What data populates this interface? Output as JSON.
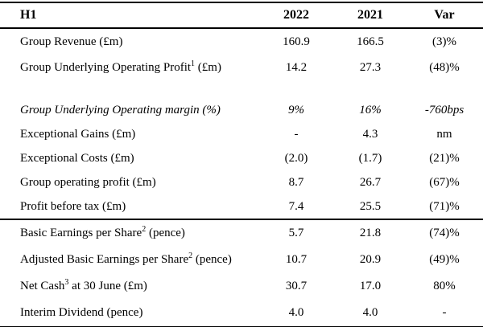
{
  "table": {
    "header": {
      "col0": "H1",
      "col1": "2022",
      "col2": "2021",
      "col3": "Var"
    },
    "rows": [
      {
        "label_pre": "Group Revenue (£m)",
        "label_sup": "",
        "label_post": "",
        "v2022": "160.9",
        "v2021": "166.5",
        "var": "(3)%"
      },
      {
        "label_pre": "Group Underlying Operating Profit",
        "label_sup": "1",
        "label_post": " (£m)",
        "v2022": "14.2",
        "v2021": "27.3",
        "var": "(48)%"
      },
      {
        "label_pre": "Group Underlying Operating margin (%)",
        "label_sup": "",
        "label_post": "",
        "v2022": "9%",
        "v2021": "16%",
        "var": "-760bps"
      },
      {
        "label_pre": "Exceptional Gains (£m)",
        "label_sup": "",
        "label_post": "",
        "v2022": "-",
        "v2021": "4.3",
        "var": "nm"
      },
      {
        "label_pre": "Exceptional Costs (£m)",
        "label_sup": "",
        "label_post": "",
        "v2022": "(2.0)",
        "v2021": "(1.7)",
        "var": "(21)%"
      },
      {
        "label_pre": "Group operating profit (£m)",
        "label_sup": "",
        "label_post": "",
        "v2022": "8.7",
        "v2021": "26.7",
        "var": "(67)%"
      },
      {
        "label_pre": "Profit before tax (£m)",
        "label_sup": "",
        "label_post": "",
        "v2022": "7.4",
        "v2021": "25.5",
        "var": "(71)%"
      },
      {
        "label_pre": "Basic Earnings per Share",
        "label_sup": "2",
        "label_post": " (pence)",
        "v2022": "5.7",
        "v2021": "21.8",
        "var": "(74)%"
      },
      {
        "label_pre": "Adjusted Basic Earnings per Share",
        "label_sup": "2",
        "label_post": " (pence)",
        "v2022": "10.7",
        "v2021": "20.9",
        "var": "(49)%"
      },
      {
        "label_pre": "Net Cash",
        "label_sup": "3",
        "label_post": " at 30 June (£m)",
        "v2022": "30.7",
        "v2021": "17.0",
        "var": "80%"
      },
      {
        "label_pre": "Interim Dividend (pence)",
        "label_sup": "",
        "label_post": "",
        "v2022": "4.0",
        "v2021": "4.0",
        "var": "-"
      }
    ]
  }
}
